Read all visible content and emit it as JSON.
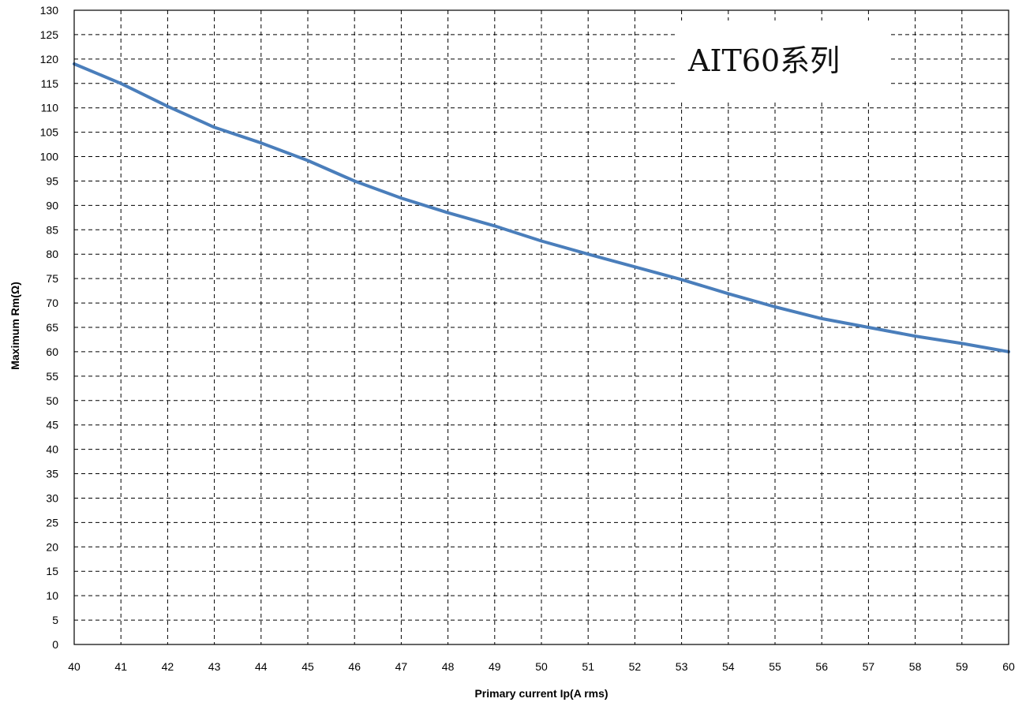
{
  "chart_data": {
    "type": "line",
    "title": "",
    "xlabel": "Primary current Ip(A rms)",
    "ylabel": "Maximum Rm(Ω)",
    "xlim": [
      40,
      60
    ],
    "ylim": [
      0,
      130
    ],
    "x_ticks": [
      40,
      41,
      42,
      43,
      44,
      45,
      46,
      47,
      48,
      49,
      50,
      51,
      52,
      53,
      54,
      55,
      56,
      57,
      58,
      59,
      60
    ],
    "y_ticks": [
      0,
      5,
      10,
      15,
      20,
      25,
      30,
      35,
      40,
      45,
      50,
      55,
      60,
      65,
      70,
      75,
      80,
      85,
      90,
      95,
      100,
      105,
      110,
      115,
      120,
      125,
      130
    ],
    "grid": true,
    "annotation": "AIT60系列",
    "series": [
      {
        "color": "#4a7ebb",
        "points": [
          [
            40,
            119
          ],
          [
            41,
            115
          ],
          [
            42,
            110.3
          ],
          [
            43,
            106
          ],
          [
            44,
            102.8
          ],
          [
            45,
            99.2
          ],
          [
            46,
            95
          ],
          [
            47,
            91.5
          ],
          [
            48,
            88.5
          ],
          [
            49,
            85.8
          ],
          [
            50,
            82.7
          ],
          [
            51,
            80
          ],
          [
            52,
            77.4
          ],
          [
            53,
            74.8
          ],
          [
            54,
            71.9
          ],
          [
            55,
            69.2
          ],
          [
            56,
            66.8
          ],
          [
            57,
            65
          ],
          [
            58,
            63.2
          ],
          [
            59,
            61.7
          ],
          [
            60,
            60
          ]
        ]
      }
    ]
  }
}
